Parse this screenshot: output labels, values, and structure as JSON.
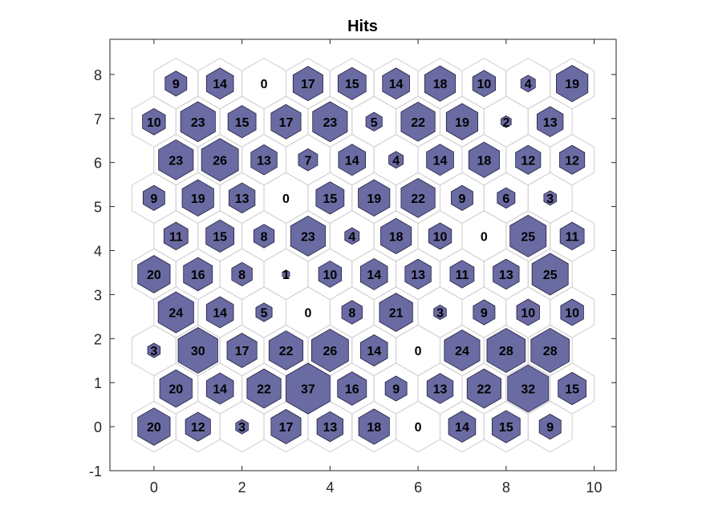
{
  "chart_data": {
    "type": "heatmap",
    "title": "Hits",
    "xlabel": "",
    "ylabel": "",
    "xlim": [
      -1,
      10.5
    ],
    "ylim": [
      -1,
      8.8
    ],
    "x_ticks": [
      0,
      2,
      4,
      6,
      8,
      10
    ],
    "y_ticks": [
      -1,
      0,
      1,
      2,
      3,
      4,
      5,
      6,
      7,
      8
    ],
    "x_tick_labels": [
      "0",
      "2",
      "4",
      "6",
      "8",
      "10"
    ],
    "y_tick_labels": [
      "-1",
      "0",
      "1",
      "2",
      "3",
      "4",
      "5",
      "6",
      "7",
      "8"
    ],
    "grid": false,
    "grid_columns": 10,
    "grid_rows": 10,
    "row_offset_odd": 0.5,
    "row_spacing": 0.866,
    "max_hits": 37,
    "hit_fill_color": "#6b6ba3",
    "hit_edge_color": "#1f1f40",
    "cell_outline_color": "#cfcfcf",
    "rows": [
      [
        20,
        12,
        3,
        17,
        13,
        18,
        0,
        14,
        15,
        9
      ],
      [
        20,
        14,
        22,
        37,
        16,
        9,
        13,
        22,
        32,
        15
      ],
      [
        3,
        30,
        17,
        22,
        26,
        14,
        0,
        24,
        28,
        28
      ],
      [
        24,
        14,
        5,
        0,
        8,
        21,
        3,
        9,
        10,
        10
      ],
      [
        20,
        16,
        8,
        1,
        10,
        14,
        13,
        11,
        13,
        25
      ],
      [
        11,
        15,
        8,
        23,
        4,
        18,
        10,
        0,
        25,
        11
      ],
      [
        9,
        19,
        13,
        0,
        15,
        19,
        22,
        9,
        6,
        3
      ],
      [
        23,
        26,
        13,
        7,
        14,
        4,
        14,
        18,
        12,
        12
      ],
      [
        10,
        23,
        15,
        17,
        23,
        5,
        22,
        19,
        2,
        13
      ],
      [
        9,
        14,
        0,
        17,
        15,
        14,
        18,
        10,
        4,
        19
      ]
    ]
  }
}
